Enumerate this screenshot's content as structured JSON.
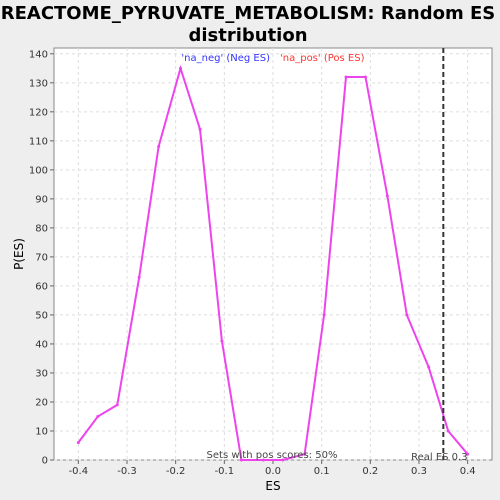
{
  "chart_data": {
    "type": "line",
    "title_line1": "REACTOME_PYRUVATE_METABOLISM: Random ES",
    "title_line2": "distribution",
    "xlabel": "ES",
    "ylabel": "P(ES)",
    "xlim": [
      -0.45,
      0.45
    ],
    "ylim": [
      0,
      142
    ],
    "xticks": [
      -0.4,
      -0.3,
      -0.2,
      -0.1,
      0.0,
      0.1,
      0.2,
      0.3,
      0.4
    ],
    "xtick_labels": [
      "-0.4",
      "-0.3",
      "-0.2",
      "-0.1",
      "0.0",
      "0.1",
      "0.2",
      "0.3",
      "0.4"
    ],
    "yticks": [
      0,
      10,
      20,
      30,
      40,
      50,
      60,
      70,
      80,
      90,
      100,
      110,
      120,
      130,
      140
    ],
    "ytick_labels": [
      "0",
      "10",
      "20",
      "30",
      "40",
      "50",
      "60",
      "70",
      "80",
      "90",
      "100",
      "110",
      "120",
      "130",
      "140"
    ],
    "grid": true,
    "legend_placement": "top-center",
    "legend": [
      {
        "label": "'na_neg' (Neg ES)",
        "color": "#3333ff"
      },
      {
        "label": "'na_pos' (Pos ES)",
        "color": "#ff3333"
      }
    ],
    "series": [
      {
        "color": "#ee44ee",
        "x": [
          -0.4,
          -0.36,
          -0.32,
          -0.275,
          -0.235,
          -0.19,
          -0.15,
          -0.105,
          -0.065,
          -0.02,
          0.02,
          0.065,
          0.105,
          0.15,
          0.19,
          0.235,
          0.275,
          0.32,
          0.36,
          0.4
        ],
        "y": [
          6,
          15,
          19,
          63,
          108,
          135,
          114,
          41,
          0,
          0,
          0,
          2,
          50,
          132,
          132,
          91,
          50,
          32,
          10,
          2
        ]
      }
    ],
    "real_es": {
      "value": 0.35,
      "label": "Real ES 0.3"
    },
    "annotation": "Sets with pos scores: 50%"
  }
}
